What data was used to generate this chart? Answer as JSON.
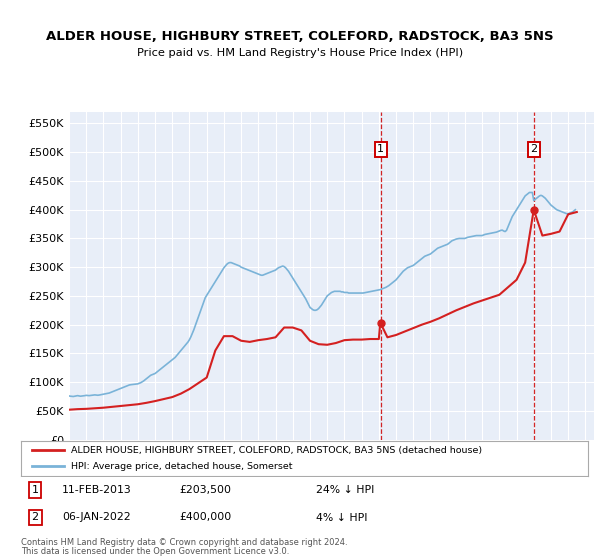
{
  "title": "ALDER HOUSE, HIGHBURY STREET, COLEFORD, RADSTOCK, BA3 5NS",
  "subtitle": "Price paid vs. HM Land Registry's House Price Index (HPI)",
  "bg_color": "#e8eef8",
  "red_line_label": "ALDER HOUSE, HIGHBURY STREET, COLEFORD, RADSTOCK, BA3 5NS (detached house)",
  "blue_line_label": "HPI: Average price, detached house, Somerset",
  "ann1_date": "2013-02-11",
  "ann1_value": 203500,
  "ann2_date": "2022-01-06",
  "ann2_value": 400000,
  "ann1_label": "1",
  "ann2_label": "2",
  "ann1_text_date": "11-FEB-2013",
  "ann1_text_price": "£203,500",
  "ann1_text_hpi": "24% ↓ HPI",
  "ann2_text_date": "06-JAN-2022",
  "ann2_text_price": "£400,000",
  "ann2_text_hpi": "4% ↓ HPI",
  "footer3": "Contains HM Land Registry data © Crown copyright and database right 2024.",
  "footer4": "This data is licensed under the Open Government Licence v3.0.",
  "yticks": [
    0,
    50000,
    100000,
    150000,
    200000,
    250000,
    300000,
    350000,
    400000,
    450000,
    500000,
    550000
  ],
  "hpi_data": [
    [
      1995.0,
      76000
    ],
    [
      1995.083,
      75500
    ],
    [
      1995.167,
      75200
    ],
    [
      1995.25,
      75000
    ],
    [
      1995.333,
      75500
    ],
    [
      1995.417,
      76000
    ],
    [
      1995.5,
      76500
    ],
    [
      1995.583,
      76000
    ],
    [
      1995.667,
      75500
    ],
    [
      1995.75,
      75800
    ],
    [
      1995.833,
      76200
    ],
    [
      1995.917,
      76500
    ],
    [
      1996.0,
      77000
    ],
    [
      1996.083,
      76800
    ],
    [
      1996.167,
      76500
    ],
    [
      1996.25,
      76800
    ],
    [
      1996.333,
      77200
    ],
    [
      1996.417,
      77500
    ],
    [
      1996.5,
      77800
    ],
    [
      1996.583,
      77500
    ],
    [
      1996.667,
      77200
    ],
    [
      1996.75,
      77500
    ],
    [
      1996.833,
      78000
    ],
    [
      1996.917,
      78500
    ],
    [
      1997.0,
      79000
    ],
    [
      1997.083,
      79500
    ],
    [
      1997.167,
      80000
    ],
    [
      1997.25,
      80500
    ],
    [
      1997.333,
      81000
    ],
    [
      1997.417,
      82000
    ],
    [
      1997.5,
      83000
    ],
    [
      1997.583,
      84000
    ],
    [
      1997.667,
      85000
    ],
    [
      1997.75,
      86000
    ],
    [
      1997.833,
      87000
    ],
    [
      1997.917,
      88000
    ],
    [
      1998.0,
      89000
    ],
    [
      1998.083,
      90000
    ],
    [
      1998.167,
      91000
    ],
    [
      1998.25,
      92000
    ],
    [
      1998.333,
      93000
    ],
    [
      1998.417,
      94000
    ],
    [
      1998.5,
      95000
    ],
    [
      1998.583,
      95500
    ],
    [
      1998.667,
      95800
    ],
    [
      1998.75,
      96000
    ],
    [
      1998.833,
      96200
    ],
    [
      1998.917,
      96500
    ],
    [
      1999.0,
      97000
    ],
    [
      1999.083,
      98000
    ],
    [
      1999.167,
      99000
    ],
    [
      1999.25,
      100500
    ],
    [
      1999.333,
      102000
    ],
    [
      1999.417,
      104000
    ],
    [
      1999.5,
      106000
    ],
    [
      1999.583,
      108000
    ],
    [
      1999.667,
      110000
    ],
    [
      1999.75,
      112000
    ],
    [
      1999.833,
      113000
    ],
    [
      1999.917,
      114000
    ],
    [
      2000.0,
      115000
    ],
    [
      2000.083,
      117000
    ],
    [
      2000.167,
      119000
    ],
    [
      2000.25,
      121000
    ],
    [
      2000.333,
      123000
    ],
    [
      2000.417,
      125000
    ],
    [
      2000.5,
      127000
    ],
    [
      2000.583,
      129000
    ],
    [
      2000.667,
      131000
    ],
    [
      2000.75,
      133000
    ],
    [
      2000.833,
      135000
    ],
    [
      2000.917,
      137000
    ],
    [
      2001.0,
      139000
    ],
    [
      2001.083,
      141000
    ],
    [
      2001.167,
      143000
    ],
    [
      2001.25,
      146000
    ],
    [
      2001.333,
      149000
    ],
    [
      2001.417,
      152000
    ],
    [
      2001.5,
      155000
    ],
    [
      2001.583,
      158000
    ],
    [
      2001.667,
      161000
    ],
    [
      2001.75,
      164000
    ],
    [
      2001.833,
      167000
    ],
    [
      2001.917,
      170000
    ],
    [
      2002.0,
      174000
    ],
    [
      2002.083,
      179000
    ],
    [
      2002.167,
      185000
    ],
    [
      2002.25,
      191000
    ],
    [
      2002.333,
      198000
    ],
    [
      2002.417,
      205000
    ],
    [
      2002.5,
      212000
    ],
    [
      2002.583,
      219000
    ],
    [
      2002.667,
      226000
    ],
    [
      2002.75,
      233000
    ],
    [
      2002.833,
      240000
    ],
    [
      2002.917,
      247000
    ],
    [
      2003.0,
      251000
    ],
    [
      2003.083,
      255000
    ],
    [
      2003.167,
      259000
    ],
    [
      2003.25,
      263000
    ],
    [
      2003.333,
      267000
    ],
    [
      2003.417,
      271000
    ],
    [
      2003.5,
      275000
    ],
    [
      2003.583,
      279000
    ],
    [
      2003.667,
      283000
    ],
    [
      2003.75,
      287000
    ],
    [
      2003.833,
      291000
    ],
    [
      2003.917,
      295000
    ],
    [
      2004.0,
      299000
    ],
    [
      2004.083,
      302000
    ],
    [
      2004.167,
      305000
    ],
    [
      2004.25,
      307000
    ],
    [
      2004.333,
      308000
    ],
    [
      2004.417,
      308000
    ],
    [
      2004.5,
      307000
    ],
    [
      2004.583,
      306000
    ],
    [
      2004.667,
      305000
    ],
    [
      2004.75,
      304000
    ],
    [
      2004.833,
      303000
    ],
    [
      2004.917,
      302000
    ],
    [
      2005.0,
      300000
    ],
    [
      2005.083,
      299000
    ],
    [
      2005.167,
      298000
    ],
    [
      2005.25,
      297000
    ],
    [
      2005.333,
      296000
    ],
    [
      2005.417,
      295000
    ],
    [
      2005.5,
      294000
    ],
    [
      2005.583,
      293000
    ],
    [
      2005.667,
      292000
    ],
    [
      2005.75,
      291000
    ],
    [
      2005.833,
      290000
    ],
    [
      2005.917,
      289000
    ],
    [
      2006.0,
      288000
    ],
    [
      2006.083,
      287000
    ],
    [
      2006.167,
      286000
    ],
    [
      2006.25,
      286000
    ],
    [
      2006.333,
      287000
    ],
    [
      2006.417,
      288000
    ],
    [
      2006.5,
      289000
    ],
    [
      2006.583,
      290000
    ],
    [
      2006.667,
      291000
    ],
    [
      2006.75,
      292000
    ],
    [
      2006.833,
      293000
    ],
    [
      2006.917,
      294000
    ],
    [
      2007.0,
      295000
    ],
    [
      2007.083,
      297000
    ],
    [
      2007.167,
      299000
    ],
    [
      2007.25,
      300000
    ],
    [
      2007.333,
      301000
    ],
    [
      2007.417,
      302000
    ],
    [
      2007.5,
      301000
    ],
    [
      2007.583,
      299000
    ],
    [
      2007.667,
      296000
    ],
    [
      2007.75,
      293000
    ],
    [
      2007.833,
      289000
    ],
    [
      2007.917,
      285000
    ],
    [
      2008.0,
      281000
    ],
    [
      2008.083,
      277000
    ],
    [
      2008.167,
      273000
    ],
    [
      2008.25,
      269000
    ],
    [
      2008.333,
      265000
    ],
    [
      2008.417,
      261000
    ],
    [
      2008.5,
      257000
    ],
    [
      2008.583,
      253000
    ],
    [
      2008.667,
      249000
    ],
    [
      2008.75,
      245000
    ],
    [
      2008.833,
      240000
    ],
    [
      2008.917,
      235000
    ],
    [
      2009.0,
      230000
    ],
    [
      2009.083,
      228000
    ],
    [
      2009.167,
      226000
    ],
    [
      2009.25,
      225000
    ],
    [
      2009.333,
      225000
    ],
    [
      2009.417,
      226000
    ],
    [
      2009.5,
      228000
    ],
    [
      2009.583,
      231000
    ],
    [
      2009.667,
      234000
    ],
    [
      2009.75,
      238000
    ],
    [
      2009.833,
      242000
    ],
    [
      2009.917,
      246000
    ],
    [
      2010.0,
      250000
    ],
    [
      2010.083,
      252000
    ],
    [
      2010.167,
      254000
    ],
    [
      2010.25,
      256000
    ],
    [
      2010.333,
      257000
    ],
    [
      2010.417,
      258000
    ],
    [
      2010.5,
      258000
    ],
    [
      2010.583,
      258000
    ],
    [
      2010.667,
      258000
    ],
    [
      2010.75,
      258000
    ],
    [
      2010.833,
      257000
    ],
    [
      2010.917,
      257000
    ],
    [
      2011.0,
      256000
    ],
    [
      2011.083,
      256000
    ],
    [
      2011.167,
      256000
    ],
    [
      2011.25,
      255000
    ],
    [
      2011.333,
      255000
    ],
    [
      2011.417,
      255000
    ],
    [
      2011.5,
      255000
    ],
    [
      2011.583,
      255000
    ],
    [
      2011.667,
      255000
    ],
    [
      2011.75,
      255000
    ],
    [
      2011.833,
      255000
    ],
    [
      2011.917,
      255000
    ],
    [
      2012.0,
      255000
    ],
    [
      2012.083,
      255000
    ],
    [
      2012.167,
      255500
    ],
    [
      2012.25,
      256000
    ],
    [
      2012.333,
      256500
    ],
    [
      2012.417,
      257000
    ],
    [
      2012.5,
      257500
    ],
    [
      2012.583,
      258000
    ],
    [
      2012.667,
      258500
    ],
    [
      2012.75,
      259000
    ],
    [
      2012.833,
      259500
    ],
    [
      2012.917,
      260000
    ],
    [
      2013.0,
      260500
    ],
    [
      2013.083,
      261000
    ],
    [
      2013.167,
      262000
    ],
    [
      2013.25,
      263000
    ],
    [
      2013.333,
      264000
    ],
    [
      2013.417,
      265000
    ],
    [
      2013.5,
      266500
    ],
    [
      2013.583,
      268000
    ],
    [
      2013.667,
      270000
    ],
    [
      2013.75,
      272000
    ],
    [
      2013.833,
      274000
    ],
    [
      2013.917,
      276000
    ],
    [
      2014.0,
      278000
    ],
    [
      2014.083,
      281000
    ],
    [
      2014.167,
      284000
    ],
    [
      2014.25,
      287000
    ],
    [
      2014.333,
      290000
    ],
    [
      2014.417,
      293000
    ],
    [
      2014.5,
      295000
    ],
    [
      2014.583,
      297000
    ],
    [
      2014.667,
      299000
    ],
    [
      2014.75,
      300000
    ],
    [
      2014.833,
      301000
    ],
    [
      2014.917,
      302000
    ],
    [
      2015.0,
      303000
    ],
    [
      2015.083,
      305000
    ],
    [
      2015.167,
      307000
    ],
    [
      2015.25,
      309000
    ],
    [
      2015.333,
      311000
    ],
    [
      2015.417,
      313000
    ],
    [
      2015.5,
      315000
    ],
    [
      2015.583,
      317000
    ],
    [
      2015.667,
      319000
    ],
    [
      2015.75,
      320000
    ],
    [
      2015.833,
      321000
    ],
    [
      2015.917,
      322000
    ],
    [
      2016.0,
      323000
    ],
    [
      2016.083,
      325000
    ],
    [
      2016.167,
      327000
    ],
    [
      2016.25,
      329000
    ],
    [
      2016.333,
      331000
    ],
    [
      2016.417,
      333000
    ],
    [
      2016.5,
      334000
    ],
    [
      2016.583,
      335000
    ],
    [
      2016.667,
      336000
    ],
    [
      2016.75,
      337000
    ],
    [
      2016.833,
      338000
    ],
    [
      2016.917,
      339000
    ],
    [
      2017.0,
      340000
    ],
    [
      2017.083,
      342000
    ],
    [
      2017.167,
      344000
    ],
    [
      2017.25,
      346000
    ],
    [
      2017.333,
      347000
    ],
    [
      2017.417,
      348000
    ],
    [
      2017.5,
      349000
    ],
    [
      2017.583,
      349500
    ],
    [
      2017.667,
      350000
    ],
    [
      2017.75,
      350000
    ],
    [
      2017.833,
      350000
    ],
    [
      2017.917,
      350000
    ],
    [
      2018.0,
      350000
    ],
    [
      2018.083,
      351000
    ],
    [
      2018.167,
      352000
    ],
    [
      2018.25,
      352500
    ],
    [
      2018.333,
      353000
    ],
    [
      2018.417,
      353500
    ],
    [
      2018.5,
      354000
    ],
    [
      2018.583,
      354500
    ],
    [
      2018.667,
      355000
    ],
    [
      2018.75,
      355000
    ],
    [
      2018.833,
      355000
    ],
    [
      2018.917,
      355000
    ],
    [
      2019.0,
      355000
    ],
    [
      2019.083,
      356000
    ],
    [
      2019.167,
      357000
    ],
    [
      2019.25,
      357500
    ],
    [
      2019.333,
      358000
    ],
    [
      2019.417,
      358500
    ],
    [
      2019.5,
      359000
    ],
    [
      2019.583,
      359500
    ],
    [
      2019.667,
      360000
    ],
    [
      2019.75,
      360500
    ],
    [
      2019.833,
      361000
    ],
    [
      2019.917,
      362000
    ],
    [
      2020.0,
      363000
    ],
    [
      2020.083,
      364000
    ],
    [
      2020.167,
      364500
    ],
    [
      2020.25,
      363000
    ],
    [
      2020.333,
      362000
    ],
    [
      2020.417,
      364000
    ],
    [
      2020.5,
      370000
    ],
    [
      2020.583,
      376000
    ],
    [
      2020.667,
      382000
    ],
    [
      2020.75,
      388000
    ],
    [
      2020.833,
      392000
    ],
    [
      2020.917,
      396000
    ],
    [
      2021.0,
      400000
    ],
    [
      2021.083,
      404000
    ],
    [
      2021.167,
      408000
    ],
    [
      2021.25,
      412000
    ],
    [
      2021.333,
      416000
    ],
    [
      2021.417,
      420000
    ],
    [
      2021.5,
      424000
    ],
    [
      2021.583,
      426000
    ],
    [
      2021.667,
      428000
    ],
    [
      2021.75,
      430000
    ],
    [
      2021.833,
      430000
    ],
    [
      2021.917,
      430000
    ],
    [
      2022.0,
      416000
    ],
    [
      2022.083,
      418000
    ],
    [
      2022.167,
      420000
    ],
    [
      2022.25,
      422000
    ],
    [
      2022.333,
      424000
    ],
    [
      2022.417,
      425000
    ],
    [
      2022.5,
      424000
    ],
    [
      2022.583,
      422000
    ],
    [
      2022.667,
      420000
    ],
    [
      2022.75,
      417000
    ],
    [
      2022.833,
      414000
    ],
    [
      2022.917,
      411000
    ],
    [
      2023.0,
      408000
    ],
    [
      2023.083,
      406000
    ],
    [
      2023.167,
      404000
    ],
    [
      2023.25,
      402000
    ],
    [
      2023.333,
      400000
    ],
    [
      2023.417,
      399000
    ],
    [
      2023.5,
      398000
    ],
    [
      2023.583,
      397000
    ],
    [
      2023.667,
      396000
    ],
    [
      2023.75,
      395000
    ],
    [
      2023.833,
      394000
    ],
    [
      2023.917,
      393000
    ],
    [
      2024.0,
      393000
    ],
    [
      2024.083,
      394000
    ],
    [
      2024.167,
      395000
    ],
    [
      2024.25,
      396000
    ],
    [
      2024.333,
      398000
    ],
    [
      2024.417,
      400000
    ]
  ],
  "red_data": [
    [
      1995.0,
      52000
    ],
    [
      1995.5,
      53000
    ],
    [
      1996.0,
      53500
    ],
    [
      1996.5,
      54500
    ],
    [
      1997.0,
      55500
    ],
    [
      1997.5,
      57000
    ],
    [
      1998.0,
      58500
    ],
    [
      1998.5,
      60000
    ],
    [
      1999.0,
      61500
    ],
    [
      1999.5,
      64000
    ],
    [
      2000.0,
      67000
    ],
    [
      2000.5,
      70500
    ],
    [
      2001.0,
      74000
    ],
    [
      2001.5,
      80000
    ],
    [
      2002.0,
      88000
    ],
    [
      2002.5,
      98000
    ],
    [
      2003.0,
      108000
    ],
    [
      2003.5,
      155000
    ],
    [
      2004.0,
      180000
    ],
    [
      2004.5,
      180000
    ],
    [
      2005.0,
      172000
    ],
    [
      2005.5,
      170000
    ],
    [
      2006.0,
      173000
    ],
    [
      2006.5,
      175000
    ],
    [
      2007.0,
      178000
    ],
    [
      2007.5,
      195000
    ],
    [
      2008.0,
      195000
    ],
    [
      2008.5,
      190000
    ],
    [
      2009.0,
      172000
    ],
    [
      2009.5,
      166000
    ],
    [
      2010.0,
      165000
    ],
    [
      2010.5,
      168000
    ],
    [
      2011.0,
      173000
    ],
    [
      2011.5,
      174000
    ],
    [
      2012.0,
      174000
    ],
    [
      2012.5,
      175000
    ],
    [
      2013.0,
      175000
    ],
    [
      2013.083,
      203500
    ],
    [
      2013.5,
      178000
    ],
    [
      2014.0,
      182000
    ],
    [
      2014.5,
      188000
    ],
    [
      2015.0,
      194000
    ],
    [
      2015.5,
      200000
    ],
    [
      2016.0,
      205000
    ],
    [
      2016.5,
      211000
    ],
    [
      2017.0,
      218000
    ],
    [
      2017.5,
      225000
    ],
    [
      2018.0,
      231000
    ],
    [
      2018.5,
      237000
    ],
    [
      2019.0,
      242000
    ],
    [
      2019.5,
      247000
    ],
    [
      2020.0,
      252000
    ],
    [
      2020.5,
      265000
    ],
    [
      2021.0,
      278000
    ],
    [
      2021.5,
      308000
    ],
    [
      2022.0,
      400000
    ],
    [
      2022.5,
      355000
    ],
    [
      2023.0,
      358000
    ],
    [
      2023.5,
      362000
    ],
    [
      2024.0,
      392000
    ],
    [
      2024.5,
      396000
    ]
  ]
}
